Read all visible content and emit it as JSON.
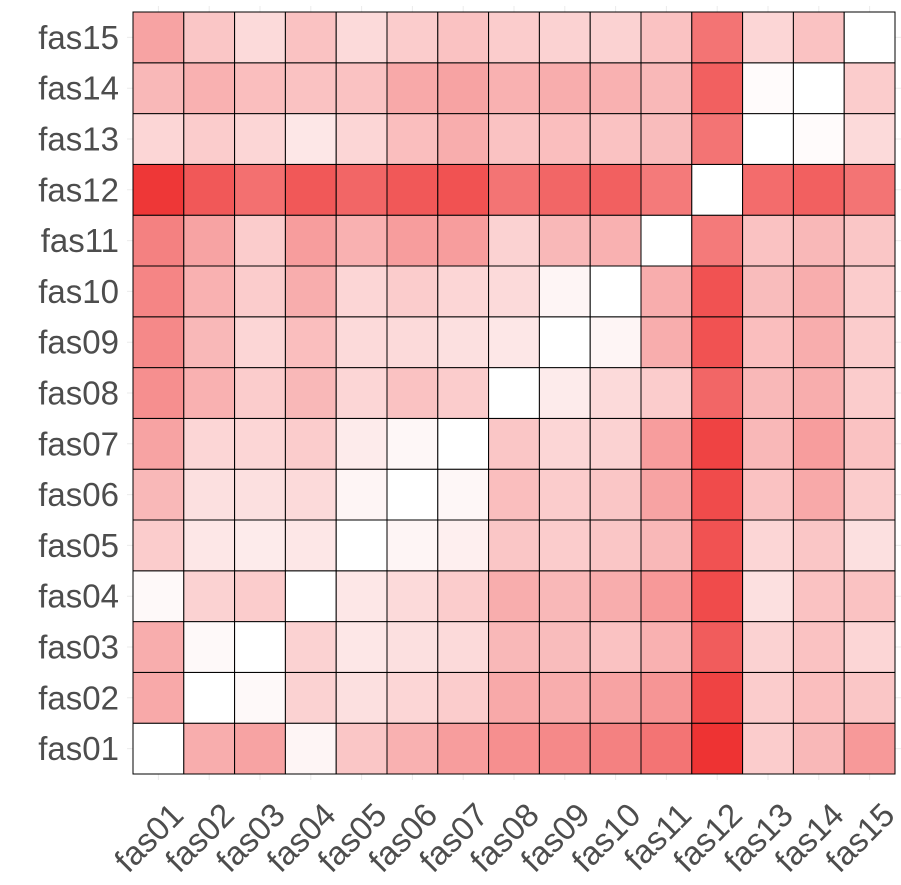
{
  "chart_data": {
    "type": "heatmap",
    "title": "",
    "xlabel": "",
    "ylabel": "",
    "x_categories": [
      "fas01",
      "fas02",
      "fas03",
      "fas04",
      "fas05",
      "fas06",
      "fas07",
      "fas08",
      "fas09",
      "fas10",
      "fas11",
      "fas12",
      "fas13",
      "fas14",
      "fas15"
    ],
    "y_categories": [
      "fas01",
      "fas02",
      "fas03",
      "fas04",
      "fas05",
      "fas06",
      "fas07",
      "fas08",
      "fas09",
      "fas10",
      "fas11",
      "fas12",
      "fas13",
      "fas14",
      "fas15"
    ],
    "value_range": [
      0,
      1
    ],
    "legend": "none",
    "grid": true,
    "colors": {
      "low": "#ffffff",
      "high": "#ee3333",
      "cell_border": "#000000",
      "tick_text": "#4d4d4d"
    },
    "values": [
      [
        0.0,
        0.4,
        0.45,
        0.05,
        0.28,
        0.38,
        0.48,
        0.55,
        0.58,
        0.62,
        0.68,
        1.0,
        0.25,
        0.35,
        0.5
      ],
      [
        0.42,
        0.0,
        0.03,
        0.22,
        0.15,
        0.2,
        0.25,
        0.42,
        0.4,
        0.45,
        0.52,
        0.92,
        0.25,
        0.32,
        0.28
      ],
      [
        0.4,
        0.03,
        0.0,
        0.22,
        0.12,
        0.15,
        0.18,
        0.35,
        0.33,
        0.3,
        0.38,
        0.8,
        0.22,
        0.3,
        0.2
      ],
      [
        0.03,
        0.22,
        0.25,
        0.0,
        0.12,
        0.18,
        0.25,
        0.4,
        0.35,
        0.4,
        0.5,
        0.88,
        0.15,
        0.3,
        0.3
      ],
      [
        0.25,
        0.12,
        0.1,
        0.12,
        0.0,
        0.05,
        0.08,
        0.28,
        0.25,
        0.28,
        0.35,
        0.85,
        0.2,
        0.28,
        0.15
      ],
      [
        0.35,
        0.15,
        0.15,
        0.18,
        0.05,
        0.0,
        0.04,
        0.32,
        0.25,
        0.28,
        0.45,
        0.88,
        0.3,
        0.42,
        0.25
      ],
      [
        0.45,
        0.2,
        0.2,
        0.25,
        0.1,
        0.04,
        0.0,
        0.28,
        0.2,
        0.22,
        0.48,
        0.92,
        0.35,
        0.48,
        0.3
      ],
      [
        0.55,
        0.38,
        0.25,
        0.35,
        0.2,
        0.3,
        0.25,
        0.0,
        0.1,
        0.18,
        0.25,
        0.75,
        0.35,
        0.4,
        0.25
      ],
      [
        0.58,
        0.35,
        0.2,
        0.32,
        0.18,
        0.18,
        0.15,
        0.12,
        0.0,
        0.05,
        0.4,
        0.85,
        0.32,
        0.4,
        0.25
      ],
      [
        0.6,
        0.38,
        0.25,
        0.4,
        0.2,
        0.25,
        0.2,
        0.18,
        0.05,
        0.0,
        0.4,
        0.85,
        0.33,
        0.4,
        0.25
      ],
      [
        0.62,
        0.45,
        0.25,
        0.48,
        0.38,
        0.48,
        0.48,
        0.22,
        0.35,
        0.38,
        0.0,
        0.65,
        0.3,
        0.35,
        0.28
      ],
      [
        0.98,
        0.82,
        0.7,
        0.82,
        0.75,
        0.82,
        0.85,
        0.68,
        0.75,
        0.78,
        0.65,
        0.0,
        0.72,
        0.78,
        0.68
      ],
      [
        0.2,
        0.25,
        0.2,
        0.12,
        0.2,
        0.32,
        0.4,
        0.3,
        0.32,
        0.3,
        0.33,
        0.68,
        0.0,
        0.02,
        0.18
      ],
      [
        0.35,
        0.38,
        0.32,
        0.3,
        0.3,
        0.42,
        0.45,
        0.38,
        0.4,
        0.38,
        0.35,
        0.78,
        0.02,
        0.0,
        0.25
      ],
      [
        0.45,
        0.28,
        0.18,
        0.3,
        0.18,
        0.25,
        0.3,
        0.25,
        0.22,
        0.22,
        0.3,
        0.68,
        0.2,
        0.3,
        0.0
      ]
    ]
  }
}
